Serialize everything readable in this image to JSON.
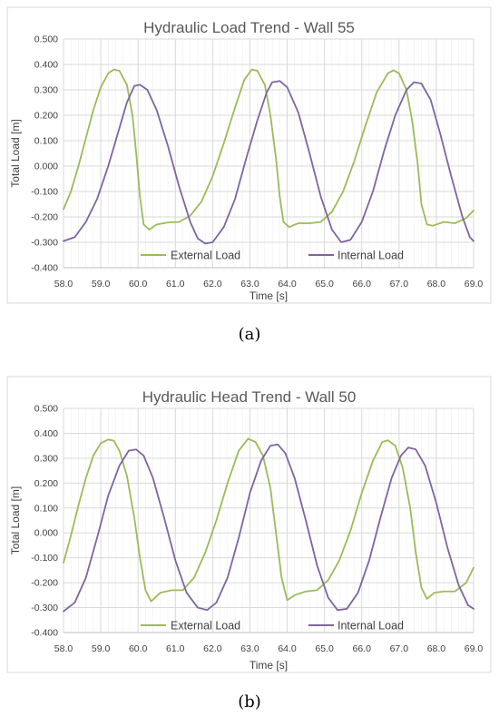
{
  "colors": {
    "external": "#9bbb59",
    "internal": "#8064a2"
  },
  "chart_data": [
    {
      "type": "line",
      "title": "Hydraulic Load Trend - Wall 55",
      "xlabel": "Time [s]",
      "ylabel": "Total Load [m]",
      "xlim": [
        58.0,
        69.0
      ],
      "ylim": [
        -0.4,
        0.5
      ],
      "xticks": [
        "58.0",
        "59.0",
        "60.0",
        "61.0",
        "62.0",
        "63.0",
        "64.0",
        "65.0",
        "66.0",
        "67.0",
        "68.0",
        "69.0"
      ],
      "yticks": [
        "-0.400",
        "-0.300",
        "-0.200",
        "-0.100",
        "0.000",
        "0.100",
        "0.200",
        "0.300",
        "0.400",
        "0.500"
      ],
      "grid": true,
      "legend_position": "bottom-inside",
      "caption": "(a)",
      "series": [
        {
          "name": "External Load",
          "color_key": "external",
          "points": [
            [
              58.0,
              -0.17
            ],
            [
              58.2,
              -0.1
            ],
            [
              58.4,
              0.0
            ],
            [
              58.6,
              0.11
            ],
            [
              58.8,
              0.22
            ],
            [
              59.0,
              0.31
            ],
            [
              59.2,
              0.365
            ],
            [
              59.35,
              0.38
            ],
            [
              59.5,
              0.375
            ],
            [
              59.7,
              0.32
            ],
            [
              59.85,
              0.2
            ],
            [
              59.95,
              0.05
            ],
            [
              60.05,
              -0.12
            ],
            [
              60.15,
              -0.23
            ],
            [
              60.3,
              -0.25
            ],
            [
              60.5,
              -0.23
            ],
            [
              60.8,
              -0.222
            ],
            [
              61.1,
              -0.22
            ],
            [
              61.4,
              -0.195
            ],
            [
              61.7,
              -0.14
            ],
            [
              62.0,
              -0.04
            ],
            [
              62.3,
              0.09
            ],
            [
              62.6,
              0.23
            ],
            [
              62.85,
              0.34
            ],
            [
              63.05,
              0.38
            ],
            [
              63.2,
              0.375
            ],
            [
              63.4,
              0.32
            ],
            [
              63.55,
              0.2
            ],
            [
              63.7,
              0.03
            ],
            [
              63.8,
              -0.12
            ],
            [
              63.9,
              -0.22
            ],
            [
              64.05,
              -0.24
            ],
            [
              64.3,
              -0.225
            ],
            [
              64.6,
              -0.225
            ],
            [
              64.9,
              -0.22
            ],
            [
              65.2,
              -0.18
            ],
            [
              65.5,
              -0.1
            ],
            [
              65.8,
              0.02
            ],
            [
              66.1,
              0.16
            ],
            [
              66.4,
              0.29
            ],
            [
              66.7,
              0.365
            ],
            [
              66.85,
              0.377
            ],
            [
              67.0,
              0.365
            ],
            [
              67.2,
              0.3
            ],
            [
              67.35,
              0.18
            ],
            [
              67.5,
              0.01
            ],
            [
              67.6,
              -0.15
            ],
            [
              67.75,
              -0.23
            ],
            [
              67.9,
              -0.235
            ],
            [
              68.2,
              -0.22
            ],
            [
              68.5,
              -0.225
            ],
            [
              68.8,
              -0.205
            ],
            [
              69.0,
              -0.175
            ]
          ]
        },
        {
          "name": "Internal Load",
          "color_key": "internal",
          "points": [
            [
              58.0,
              -0.295
            ],
            [
              58.3,
              -0.28
            ],
            [
              58.6,
              -0.22
            ],
            [
              58.9,
              -0.13
            ],
            [
              59.2,
              0.0
            ],
            [
              59.5,
              0.15
            ],
            [
              59.7,
              0.25
            ],
            [
              59.9,
              0.315
            ],
            [
              60.05,
              0.32
            ],
            [
              60.25,
              0.3
            ],
            [
              60.5,
              0.22
            ],
            [
              60.8,
              0.08
            ],
            [
              61.1,
              -0.08
            ],
            [
              61.4,
              -0.22
            ],
            [
              61.6,
              -0.285
            ],
            [
              61.8,
              -0.305
            ],
            [
              62.0,
              -0.3
            ],
            [
              62.3,
              -0.24
            ],
            [
              62.6,
              -0.13
            ],
            [
              62.9,
              0.03
            ],
            [
              63.2,
              0.18
            ],
            [
              63.45,
              0.29
            ],
            [
              63.6,
              0.33
            ],
            [
              63.8,
              0.335
            ],
            [
              64.0,
              0.31
            ],
            [
              64.3,
              0.21
            ],
            [
              64.6,
              0.05
            ],
            [
              64.9,
              -0.12
            ],
            [
              65.2,
              -0.25
            ],
            [
              65.45,
              -0.3
            ],
            [
              65.7,
              -0.29
            ],
            [
              66.0,
              -0.22
            ],
            [
              66.3,
              -0.1
            ],
            [
              66.6,
              0.06
            ],
            [
              66.9,
              0.2
            ],
            [
              67.2,
              0.3
            ],
            [
              67.4,
              0.33
            ],
            [
              67.6,
              0.325
            ],
            [
              67.85,
              0.26
            ],
            [
              68.1,
              0.13
            ],
            [
              68.4,
              -0.04
            ],
            [
              68.7,
              -0.2
            ],
            [
              68.9,
              -0.28
            ],
            [
              69.0,
              -0.295
            ]
          ]
        }
      ]
    },
    {
      "type": "line",
      "title": "Hydraulic Head Trend - Wall 50",
      "xlabel": "Time [s]",
      "ylabel": "Total Load [m]",
      "xlim": [
        58.0,
        69.0
      ],
      "ylim": [
        -0.4,
        0.5
      ],
      "xticks": [
        "58.0",
        "59.0",
        "60.0",
        "61.0",
        "62.0",
        "63.0",
        "64.0",
        "65.0",
        "66.0",
        "67.0",
        "68.0",
        "69.0"
      ],
      "yticks": [
        "-0.400",
        "-0.300",
        "-0.200",
        "-0.100",
        "0.000",
        "0.100",
        "0.200",
        "0.300",
        "0.400",
        "0.500"
      ],
      "grid": true,
      "legend_position": "bottom-inside",
      "caption": "(b)",
      "series": [
        {
          "name": "External Load",
          "color_key": "external",
          "points": [
            [
              58.0,
              -0.12
            ],
            [
              58.2,
              -0.01
            ],
            [
              58.4,
              0.11
            ],
            [
              58.6,
              0.22
            ],
            [
              58.8,
              0.31
            ],
            [
              59.0,
              0.36
            ],
            [
              59.2,
              0.375
            ],
            [
              59.35,
              0.37
            ],
            [
              59.5,
              0.33
            ],
            [
              59.7,
              0.23
            ],
            [
              59.9,
              0.06
            ],
            [
              60.05,
              -0.1
            ],
            [
              60.2,
              -0.23
            ],
            [
              60.35,
              -0.275
            ],
            [
              60.6,
              -0.24
            ],
            [
              60.9,
              -0.23
            ],
            [
              61.2,
              -0.23
            ],
            [
              61.5,
              -0.18
            ],
            [
              61.8,
              -0.08
            ],
            [
              62.1,
              0.05
            ],
            [
              62.4,
              0.2
            ],
            [
              62.7,
              0.33
            ],
            [
              62.95,
              0.378
            ],
            [
              63.15,
              0.365
            ],
            [
              63.35,
              0.31
            ],
            [
              63.55,
              0.18
            ],
            [
              63.7,
              0.0
            ],
            [
              63.85,
              -0.18
            ],
            [
              64.0,
              -0.27
            ],
            [
              64.2,
              -0.25
            ],
            [
              64.5,
              -0.235
            ],
            [
              64.8,
              -0.23
            ],
            [
              65.1,
              -0.19
            ],
            [
              65.4,
              -0.11
            ],
            [
              65.7,
              0.01
            ],
            [
              66.0,
              0.16
            ],
            [
              66.3,
              0.29
            ],
            [
              66.55,
              0.365
            ],
            [
              66.7,
              0.372
            ],
            [
              66.9,
              0.35
            ],
            [
              67.1,
              0.26
            ],
            [
              67.3,
              0.1
            ],
            [
              67.45,
              -0.08
            ],
            [
              67.6,
              -0.22
            ],
            [
              67.75,
              -0.265
            ],
            [
              67.95,
              -0.24
            ],
            [
              68.2,
              -0.235
            ],
            [
              68.5,
              -0.235
            ],
            [
              68.8,
              -0.2
            ],
            [
              69.0,
              -0.14
            ]
          ]
        },
        {
          "name": "Internal Load",
          "color_key": "internal",
          "points": [
            [
              58.0,
              -0.315
            ],
            [
              58.3,
              -0.28
            ],
            [
              58.6,
              -0.18
            ],
            [
              58.9,
              -0.02
            ],
            [
              59.2,
              0.15
            ],
            [
              59.5,
              0.27
            ],
            [
              59.75,
              0.33
            ],
            [
              59.95,
              0.335
            ],
            [
              60.15,
              0.31
            ],
            [
              60.4,
              0.22
            ],
            [
              60.7,
              0.06
            ],
            [
              61.0,
              -0.11
            ],
            [
              61.3,
              -0.24
            ],
            [
              61.6,
              -0.3
            ],
            [
              61.85,
              -0.31
            ],
            [
              62.1,
              -0.28
            ],
            [
              62.4,
              -0.18
            ],
            [
              62.7,
              -0.02
            ],
            [
              63.0,
              0.16
            ],
            [
              63.3,
              0.29
            ],
            [
              63.55,
              0.35
            ],
            [
              63.75,
              0.355
            ],
            [
              63.95,
              0.32
            ],
            [
              64.2,
              0.22
            ],
            [
              64.5,
              0.05
            ],
            [
              64.8,
              -0.13
            ],
            [
              65.1,
              -0.26
            ],
            [
              65.35,
              -0.31
            ],
            [
              65.6,
              -0.305
            ],
            [
              65.9,
              -0.24
            ],
            [
              66.2,
              -0.11
            ],
            [
              66.5,
              0.06
            ],
            [
              66.8,
              0.22
            ],
            [
              67.05,
              0.31
            ],
            [
              67.25,
              0.343
            ],
            [
              67.45,
              0.335
            ],
            [
              67.7,
              0.27
            ],
            [
              68.0,
              0.12
            ],
            [
              68.3,
              -0.06
            ],
            [
              68.6,
              -0.21
            ],
            [
              68.85,
              -0.29
            ],
            [
              69.0,
              -0.305
            ]
          ]
        }
      ]
    }
  ]
}
